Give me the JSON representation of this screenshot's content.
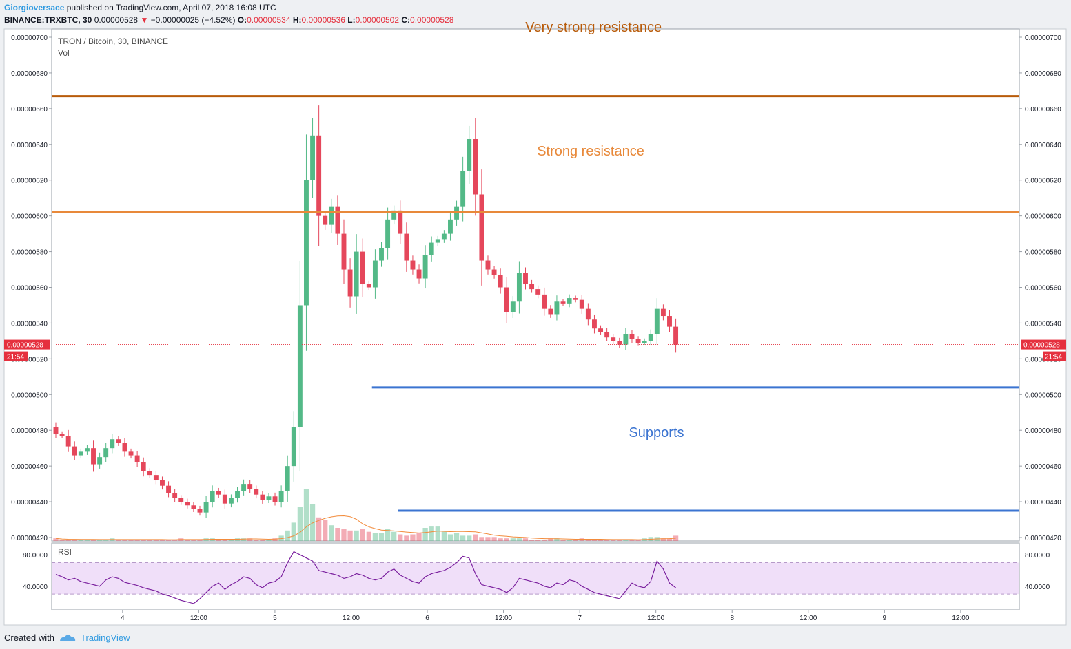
{
  "header": {
    "author": "Giorgioversace",
    "published": "published on TradingView.com, April 07, 2018 16:08 UTC",
    "symbol": "BINANCE:TRXBTC, 30",
    "last": "0.00000528",
    "arrow": "▼",
    "change": "−0.00000025 (−4.52%)",
    "o_label": "O:",
    "o_value": "0.00000534",
    "h_label": "H:",
    "h_value": "0.00000536",
    "l_label": "L:",
    "l_value": "0.00000502",
    "c_label": "C:",
    "c_value": "0.00000528"
  },
  "footer": {
    "created": "Created with",
    "brand": "TradingView"
  },
  "colors": {
    "up": "#53b987",
    "down": "#e5475b",
    "very_strong": "#b85b0a",
    "strong": "#e8893a",
    "support": "#3b74d1",
    "rsi_line": "#7a1f9e",
    "rsi_band": "#f0dff9",
    "volume_ma": "#f28b3b"
  },
  "chart_data": {
    "type": "candlestick",
    "title": "TRON / Bitcoin, 30, BINANCE",
    "volume_label": "Vol",
    "rsi_label": "RSI",
    "ylim": [
      4.2e-06,
      7e-06
    ],
    "y_ticks": [
      "0.00000700",
      "0.00000680",
      "0.00000660",
      "0.00000640",
      "0.00000620",
      "0.00000600",
      "0.00000580",
      "0.00000560",
      "0.00000540",
      "0.00000520",
      "0.00000500",
      "0.00000480",
      "0.00000460",
      "0.00000440",
      "0.00000420"
    ],
    "x_ticks": [
      "4",
      "12:00",
      "5",
      "12:00",
      "6",
      "12:00",
      "7",
      "12:00",
      "8",
      "12:00",
      "9",
      "12:00"
    ],
    "last_price": {
      "value": 5.28e-06,
      "label": "0.00000528",
      "timer": "21:54"
    },
    "rsi": {
      "ylim": [
        10,
        95
      ],
      "ticks": [
        "80.0000",
        "40.0000"
      ],
      "band": [
        30,
        70
      ]
    },
    "annotations": [
      {
        "text": "Very strong resistance",
        "price": 6.67e-06,
        "kind": "very_strong"
      },
      {
        "text": "Strong resistance",
        "price": 6.02e-06,
        "kind": "strong"
      },
      {
        "text": "Supports",
        "price": 5.04e-06,
        "kind": "support"
      }
    ],
    "lines": [
      {
        "name": "very-strong-resistance-line",
        "price": 6.67e-06,
        "kind": "very_strong",
        "start": 0.0
      },
      {
        "name": "strong-resistance-line",
        "price": 6.02e-06,
        "kind": "strong",
        "start": 0.0
      },
      {
        "name": "support-line-upper",
        "price": 5.04e-06,
        "kind": "support",
        "start": 0.331
      },
      {
        "name": "support-line-lower",
        "price": 4.35e-06,
        "kind": "support",
        "start": 0.358
      }
    ],
    "close_series": [
      4.78e-06,
      4.77e-06,
      4.71e-06,
      4.66e-06,
      4.68e-06,
      4.7e-06,
      4.61e-06,
      4.65e-06,
      4.7e-06,
      4.75e-06,
      4.73e-06,
      4.68e-06,
      4.66e-06,
      4.62e-06,
      4.57e-06,
      4.55e-06,
      4.52e-06,
      4.49e-06,
      4.45e-06,
      4.42e-06,
      4.4e-06,
      4.38e-06,
      4.36e-06,
      4.34e-06,
      4.4e-06,
      4.46e-06,
      4.44e-06,
      4.39e-06,
      4.42e-06,
      4.46e-06,
      4.5e-06,
      4.47e-06,
      4.44e-06,
      4.41e-06,
      4.43e-06,
      4.4e-06,
      4.46e-06,
      4.6e-06,
      4.82e-06,
      5.5e-06,
      6.2e-06,
      6.45e-06,
      6e-06,
      5.95e-06,
      6.05e-06,
      5.9e-06,
      5.7e-06,
      5.55e-06,
      5.8e-06,
      5.62e-06,
      5.6e-06,
      5.75e-06,
      5.82e-06,
      5.98e-06,
      6.03e-06,
      5.9e-06,
      5.75e-06,
      5.7e-06,
      5.65e-06,
      5.78e-06,
      5.85e-06,
      5.87e-06,
      5.9e-06,
      5.98e-06,
      6.05e-06,
      6.25e-06,
      6.43e-06,
      6.12e-06,
      5.75e-06,
      5.7e-06,
      5.67e-06,
      5.6e-06,
      5.46e-06,
      5.52e-06,
      5.68e-06,
      5.62e-06,
      5.59e-06,
      5.56e-06,
      5.48e-06,
      5.45e-06,
      5.52e-06,
      5.51e-06,
      5.54e-06,
      5.53e-06,
      5.48e-06,
      5.42e-06,
      5.37e-06,
      5.35e-06,
      5.32e-06,
      5.3e-06,
      5.28e-06,
      5.34e-06,
      5.31e-06,
      5.29e-06,
      5.3e-06,
      5.34e-06,
      5.48e-06,
      5.44e-06,
      5.38e-06,
      5.28e-06
    ],
    "volume_series": [
      0.02,
      0.01,
      0.01,
      0.01,
      0.01,
      0.01,
      0.01,
      0.01,
      0.01,
      0.02,
      0.01,
      0.01,
      0.01,
      0.01,
      0.01,
      0.01,
      0.01,
      0.01,
      0.01,
      0.01,
      0.02,
      0.01,
      0.01,
      0.01,
      0.02,
      0.02,
      0.01,
      0.01,
      0.01,
      0.02,
      0.02,
      0.02,
      0.01,
      0.01,
      0.01,
      0.02,
      0.04,
      0.08,
      0.14,
      0.26,
      0.4,
      0.28,
      0.18,
      0.16,
      0.12,
      0.1,
      0.09,
      0.08,
      0.08,
      0.09,
      0.07,
      0.06,
      0.06,
      0.09,
      0.07,
      0.05,
      0.04,
      0.05,
      0.06,
      0.1,
      0.11,
      0.11,
      0.07,
      0.05,
      0.06,
      0.04,
      0.04,
      0.05,
      0.03,
      0.03,
      0.03,
      0.02,
      0.02,
      0.02,
      0.02,
      0.02,
      0.01,
      0.01,
      0.01,
      0.02,
      0.02,
      0.01,
      0.01,
      0.01,
      0.02,
      0.01,
      0.01,
      0.01,
      0.01,
      0.01,
      0.01,
      0.01,
      0.01,
      0.01,
      0.02,
      0.03,
      0.03,
      0.02,
      0.02,
      0.04
    ],
    "rsi_series": [
      55,
      52,
      48,
      50,
      46,
      44,
      42,
      40,
      48,
      52,
      50,
      45,
      43,
      41,
      38,
      36,
      34,
      30,
      28,
      25,
      22,
      20,
      18,
      24,
      32,
      40,
      44,
      36,
      42,
      46,
      52,
      50,
      42,
      38,
      44,
      46,
      52,
      70,
      84,
      80,
      76,
      72,
      60,
      58,
      56,
      54,
      50,
      52,
      56,
      54,
      50,
      48,
      50,
      58,
      62,
      54,
      50,
      46,
      44,
      52,
      56,
      58,
      60,
      64,
      70,
      78,
      76,
      56,
      42,
      40,
      38,
      36,
      32,
      38,
      50,
      48,
      46,
      44,
      40,
      38,
      44,
      42,
      48,
      46,
      40,
      36,
      32,
      30,
      28,
      26,
      24,
      34,
      44,
      40,
      38,
      46,
      72,
      62,
      44,
      38
    ]
  }
}
